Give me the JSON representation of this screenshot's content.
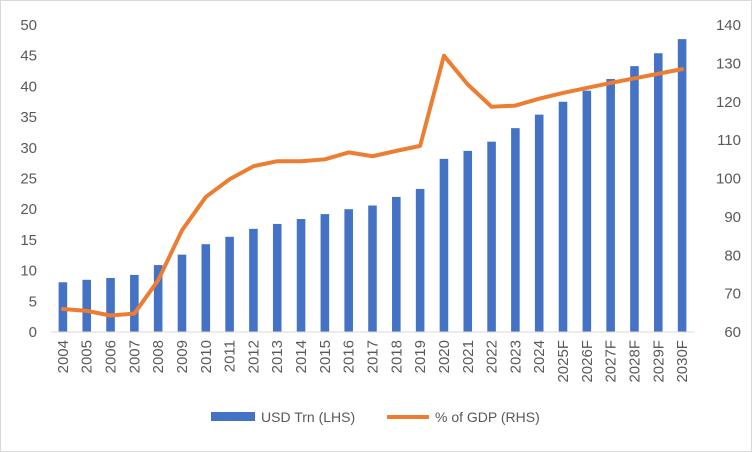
{
  "chart_data": {
    "type": "bar+line",
    "title": "",
    "categories": [
      "2004",
      "2005",
      "2006",
      "2007",
      "2008",
      "2009",
      "2010",
      "2011",
      "2012",
      "2013",
      "2014",
      "2015",
      "2016",
      "2017",
      "2018",
      "2019",
      "2020",
      "2021",
      "2022",
      "2023",
      "2024",
      "2025F",
      "2026F",
      "2027F",
      "2028F",
      "2029F",
      "2030F"
    ],
    "series": [
      {
        "name": "USD Trn (LHS)",
        "type": "bar",
        "axis": "left",
        "color": "#4472C4",
        "values": [
          8.1,
          8.5,
          8.8,
          9.3,
          10.9,
          12.6,
          14.3,
          15.5,
          16.8,
          17.6,
          18.4,
          19.2,
          20.0,
          20.6,
          22.0,
          23.3,
          28.2,
          29.5,
          31.0,
          33.2,
          35.4,
          37.5,
          39.3,
          41.2,
          43.3,
          45.4,
          47.7
        ]
      },
      {
        "name": "% of GDP (RHS)",
        "type": "line",
        "axis": "right",
        "color": "#ED7D31",
        "values": [
          66.0,
          65.5,
          64.3,
          64.8,
          73.5,
          86.5,
          95.2,
          99.8,
          103.2,
          104.5,
          104.5,
          105.0,
          106.8,
          105.8,
          107.2,
          108.5,
          132.0,
          124.5,
          118.7,
          119.0,
          120.8,
          122.3,
          123.6,
          124.9,
          126.1,
          127.3,
          128.5
        ]
      }
    ],
    "left_axis": {
      "min": 0,
      "max": 50,
      "step": 5,
      "ticks": [
        "0",
        "5",
        "10",
        "15",
        "20",
        "25",
        "30",
        "35",
        "40",
        "45",
        "50"
      ]
    },
    "right_axis": {
      "min": 60,
      "max": 140,
      "step": 10,
      "ticks": [
        "60",
        "70",
        "80",
        "90",
        "100",
        "110",
        "120",
        "130",
        "140"
      ]
    },
    "grid": false,
    "legend_position": "bottom"
  }
}
